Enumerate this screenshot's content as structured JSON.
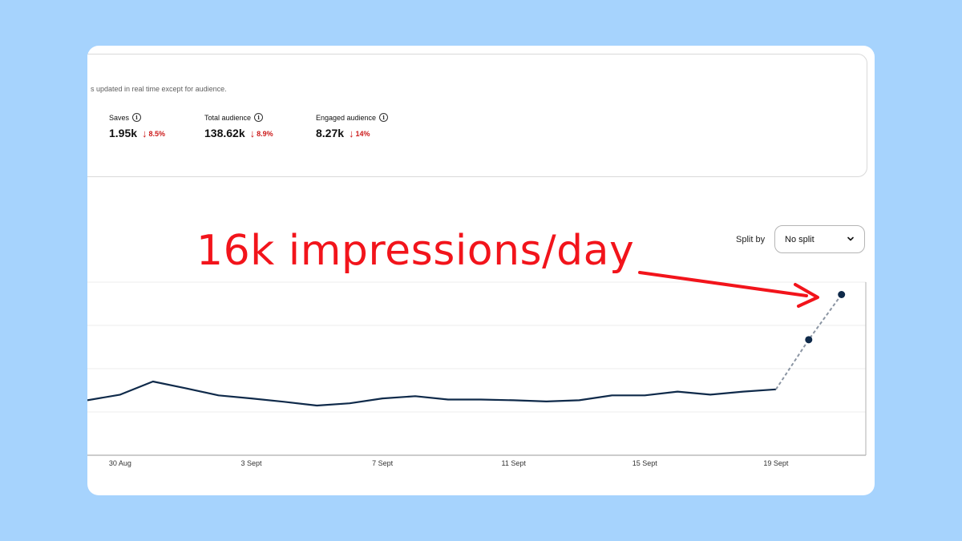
{
  "stats": {
    "updated_note": "s updated in real time except for audience.",
    "metrics": [
      {
        "label": "Saves",
        "value": "1.95k",
        "change": "8.5%",
        "direction": "down"
      },
      {
        "label": "Total audience",
        "value": "138.62k",
        "change": "8.9%",
        "direction": "down"
      },
      {
        "label": "Engaged audience",
        "value": "8.27k",
        "change": "14%",
        "direction": "down"
      }
    ]
  },
  "annotation": {
    "text": "16k impressions/day"
  },
  "split": {
    "label": "Split by",
    "selected": "No split",
    "icon": "chevron-down-icon"
  },
  "colors": {
    "line": "#0f2a4a",
    "projection": "#8b95a3",
    "annotation": "#f2141b",
    "down": "#cc1a1a",
    "background": "#a6d3fd"
  },
  "chart_data": {
    "type": "line",
    "x_ticks": [
      "30 Aug",
      "3 Sept",
      "7 Sept",
      "11 Sept",
      "15 Sept",
      "19 Sept"
    ],
    "series": [
      {
        "style": "solid",
        "x": [
          "29 Aug",
          "30 Aug",
          "31 Aug",
          "1 Sept",
          "2 Sept",
          "3 Sept",
          "4 Sept",
          "5 Sept",
          "6 Sept",
          "7 Sept",
          "8 Sept",
          "9 Sept",
          "10 Sept",
          "11 Sept",
          "12 Sept",
          "13 Sept",
          "14 Sept",
          "15 Sept",
          "16 Sept",
          "17 Sept",
          "18 Sept",
          "19 Sept"
        ],
        "values": [
          1.46,
          1.61,
          1.96,
          1.78,
          1.59,
          1.51,
          1.42,
          1.32,
          1.38,
          1.51,
          1.57,
          1.48,
          1.48,
          1.46,
          1.43,
          1.46,
          1.59,
          1.59,
          1.69,
          1.61,
          1.69,
          1.75
        ]
      },
      {
        "style": "dashed-projection",
        "x": [
          "19 Sept",
          "20 Sept",
          "21 Sept"
        ],
        "values": [
          1.75,
          3.07,
          4.27
        ]
      }
    ],
    "ylim": [
      0,
      4.6
    ],
    "grid": true
  }
}
